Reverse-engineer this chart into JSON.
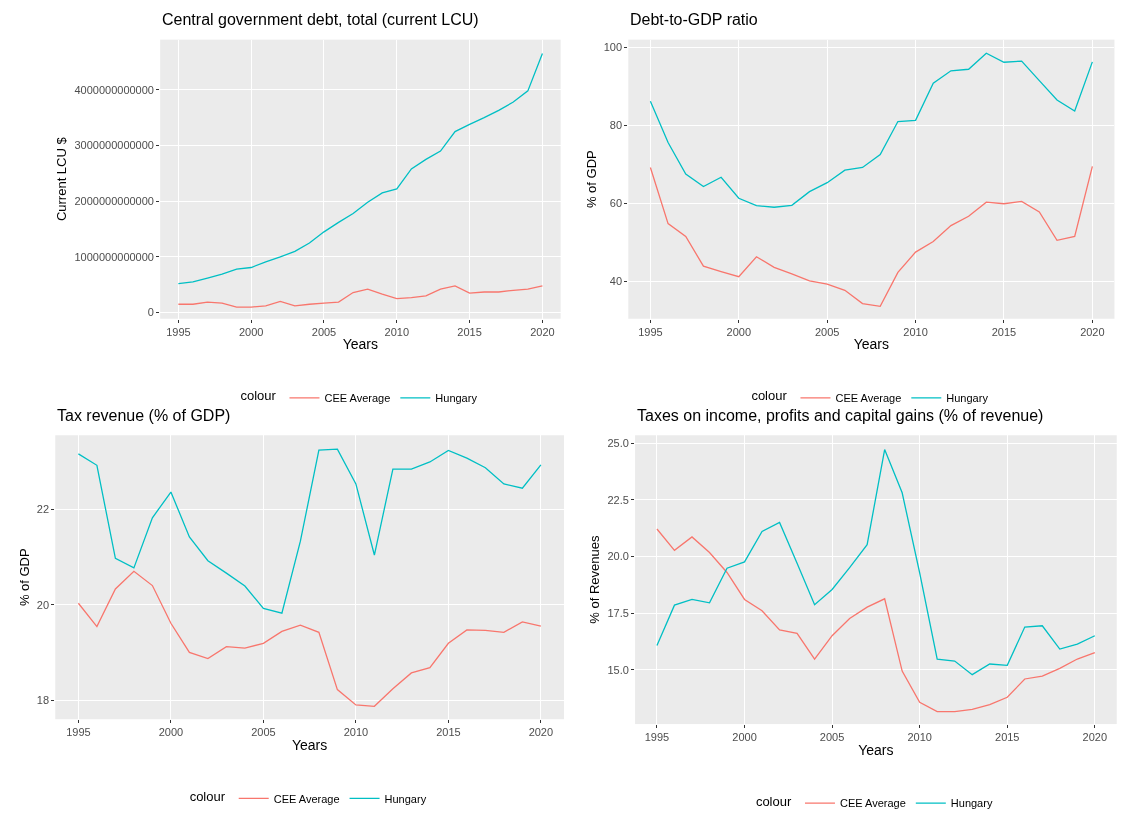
{
  "chart_data": [
    {
      "type": "line",
      "title": "Central government debt, total (current LCU)",
      "xlabel": "Years",
      "ylabel": "Current LCU $",
      "legend_title": "colour",
      "legend": "bottom",
      "grid": true,
      "x": [
        1995,
        1996,
        1997,
        1998,
        1999,
        2000,
        2001,
        2002,
        2003,
        2004,
        2005,
        2006,
        2007,
        2008,
        2009,
        2010,
        2011,
        2012,
        2013,
        2014,
        2015,
        2016,
        2017,
        2018,
        2019,
        2020
      ],
      "xlim": [
        1993.75,
        2021.25
      ],
      "xticks": [
        1995,
        2000,
        2005,
        2010,
        2015,
        2020
      ],
      "ylim": [
        -110000000000.0,
        4900000000000.0
      ],
      "yticks": [
        0,
        1000000000000,
        2000000000000,
        3000000000000,
        4000000000000
      ],
      "series": [
        {
          "name": "CEE Average",
          "color": "#f8766d",
          "values": [
            150000000000.0,
            150000000000.0,
            190000000000.0,
            170000000000.0,
            100000000000.0,
            100000000000.0,
            120000000000.0,
            200000000000.0,
            120000000000.0,
            150000000000.0,
            170000000000.0,
            190000000000.0,
            360000000000.0,
            420000000000.0,
            330000000000.0,
            250000000000.0,
            270000000000.0,
            300000000000.0,
            420000000000.0,
            480000000000.0,
            350000000000.0,
            370000000000.0,
            370000000000.0,
            400000000000.0,
            420000000000.0,
            480000000000.0
          ]
        },
        {
          "name": "Hungary",
          "color": "#00bfc4",
          "values": [
            520000000000.0,
            550000000000.0,
            620000000000.0,
            690000000000.0,
            780000000000.0,
            810000000000.0,
            910000000000.0,
            1000000000000.0,
            1100000000000.0,
            1250000000000.0,
            1450000000000.0,
            1620000000000.0,
            1780000000000.0,
            1980000000000.0,
            2150000000000.0,
            2220000000000.0,
            2580000000000.0,
            2750000000000.0,
            2900000000000.0,
            3250000000000.0,
            3380000000000.0,
            3500000000000.0,
            3630000000000.0,
            3780000000000.0,
            3980000000000.0,
            4650000000000.0
          ]
        }
      ]
    },
    {
      "type": "line",
      "title": "Debt-to-GDP ratio",
      "xlabel": "Years",
      "ylabel": "% of GDP",
      "legend_title": "colour",
      "legend": "bottom",
      "grid": true,
      "x": [
        1995,
        1996,
        1997,
        1998,
        1999,
        2000,
        2001,
        2002,
        2003,
        2004,
        2005,
        2006,
        2007,
        2008,
        2009,
        2010,
        2011,
        2012,
        2013,
        2014,
        2015,
        2016,
        2017,
        2018,
        2019,
        2020
      ],
      "xlim": [
        1993.75,
        2021.25
      ],
      "xticks": [
        1995,
        2000,
        2005,
        2010,
        2015,
        2020
      ],
      "ylim": [
        30.4,
        102
      ],
      "yticks": [
        40,
        60,
        80,
        100
      ],
      "series": [
        {
          "name": "CEE Average",
          "color": "#f8766d",
          "values": [
            69.2,
            54.8,
            51.5,
            43.9,
            42.5,
            41.2,
            46.3,
            43.6,
            41.9,
            40.1,
            39.3,
            37.7,
            34.3,
            33.6,
            42.3,
            47.5,
            50.2,
            54.3,
            56.7,
            60.3,
            59.9,
            60.5,
            57.8,
            50.5,
            51.5,
            69.5
          ]
        },
        {
          "name": "Hungary",
          "color": "#00bfc4",
          "values": [
            86.2,
            75.6,
            67.5,
            64.3,
            66.7,
            61.3,
            59.4,
            59.0,
            59.5,
            63.0,
            65.3,
            68.5,
            69.2,
            72.5,
            81.0,
            81.3,
            90.8,
            94.0,
            94.4,
            98.5,
            96.2,
            96.5,
            91.5,
            86.5,
            83.7,
            96.3
          ]
        }
      ]
    },
    {
      "type": "line",
      "title": "Tax revenue (% of GDP)",
      "xlabel": "Years",
      "ylabel": "% of GDP",
      "legend_title": "colour",
      "legend": "bottom",
      "grid": true,
      "x": [
        1995,
        1996,
        1997,
        1998,
        1999,
        2000,
        2001,
        2002,
        2003,
        2004,
        2005,
        2006,
        2007,
        2008,
        2009,
        2010,
        2011,
        2012,
        2013,
        2014,
        2015,
        2016,
        2017,
        2018,
        2019,
        2020
      ],
      "xlim": [
        1993.75,
        2021.25
      ],
      "xticks": [
        1995,
        2000,
        2005,
        2010,
        2015,
        2020
      ],
      "ylim": [
        17.6,
        23.55
      ],
      "yticks": [
        18,
        20,
        22
      ],
      "series": [
        {
          "name": "CEE Average",
          "color": "#f8766d",
          "values": [
            20.03,
            19.54,
            20.33,
            20.7,
            20.4,
            19.61,
            19.0,
            18.87,
            19.12,
            19.09,
            19.19,
            19.44,
            19.57,
            19.42,
            18.22,
            17.9,
            17.87,
            18.24,
            18.57,
            18.68,
            19.19,
            19.47,
            19.46,
            19.42,
            19.64,
            19.55
          ]
        },
        {
          "name": "Hungary",
          "color": "#00bfc4",
          "values": [
            23.16,
            22.92,
            20.97,
            20.77,
            21.82,
            22.36,
            21.42,
            20.92,
            20.66,
            20.39,
            19.92,
            19.82,
            21.33,
            23.24,
            23.26,
            22.53,
            21.04,
            22.84,
            22.84,
            22.99,
            23.23,
            23.07,
            22.87,
            22.53,
            22.44,
            22.93
          ]
        }
      ]
    },
    {
      "type": "line",
      "title": "Taxes on income, profits and capital gains (% of revenue)",
      "xlabel": "Years",
      "ylabel": "% of Revenues",
      "legend_title": "colour",
      "legend": "bottom",
      "grid": true,
      "x": [
        1995,
        1996,
        1997,
        1998,
        1999,
        2000,
        2001,
        2002,
        2003,
        2004,
        2005,
        2006,
        2007,
        2008,
        2009,
        2010,
        2011,
        2012,
        2013,
        2014,
        2015,
        2016,
        2017,
        2018,
        2019,
        2020
      ],
      "xlim": [
        1993.75,
        2021.25
      ],
      "xticks": [
        1995,
        2000,
        2005,
        2010,
        2015,
        2020
      ],
      "ylim": [
        12.6,
        25.35
      ],
      "yticks": [
        {
          "value": 15,
          "label": "15.0"
        },
        {
          "value": 17.5,
          "label": "17.5"
        },
        {
          "value": 20,
          "label": "20.0"
        },
        {
          "value": 22.5,
          "label": "22.5"
        },
        {
          "value": 25,
          "label": "25.0"
        }
      ],
      "series": [
        {
          "name": "CEE Average",
          "color": "#f8766d",
          "values": [
            21.21,
            20.27,
            20.86,
            20.17,
            19.29,
            18.1,
            17.6,
            16.76,
            16.6,
            15.47,
            16.5,
            17.26,
            17.76,
            18.13,
            14.94,
            13.56,
            13.15,
            13.15,
            13.25,
            13.46,
            13.78,
            14.59,
            14.72,
            15.06,
            15.47,
            15.75
          ]
        },
        {
          "name": "Hungary",
          "color": "#00bfc4",
          "values": [
            16.07,
            17.85,
            18.1,
            17.95,
            19.48,
            19.76,
            21.1,
            21.5,
            19.7,
            17.87,
            18.54,
            19.51,
            20.52,
            24.72,
            22.81,
            19.27,
            15.47,
            15.38,
            14.78,
            15.25,
            15.19,
            16.88,
            16.94,
            15.91,
            16.13,
            16.5
          ]
        }
      ]
    }
  ]
}
